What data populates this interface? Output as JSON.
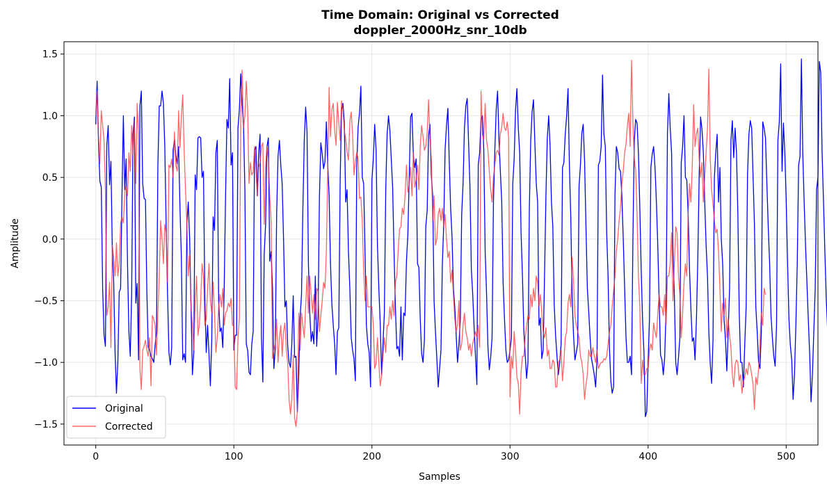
{
  "chart_data": {
    "type": "line",
    "title": "Time Domain: Original vs Corrected",
    "subtitle": "doppler_2000Hz_snr_10db",
    "xlabel": "Samples",
    "ylabel": "Amplitude",
    "xlim": [
      -23,
      523
    ],
    "ylim": [
      -1.67,
      1.6
    ],
    "x_ticks": [
      0,
      100,
      200,
      300,
      400,
      500
    ],
    "y_ticks": [
      1.5,
      1.0,
      0.5,
      0.0,
      -0.5,
      -1.0,
      -1.5
    ],
    "x_tick_labels": [
      "0",
      "100",
      "200",
      "300",
      "400",
      "500"
    ],
    "y_tick_labels": [
      "1.5",
      "1.0",
      "0.5",
      "0.0",
      "−0.5",
      "−1.0",
      "−1.5"
    ],
    "grid": true,
    "legend_position": "lower-left",
    "series": [
      {
        "name": "Original",
        "color": "#0000ff",
        "y": [
          0.93,
          1.28,
          0.78,
          0.47,
          0.42,
          -0.4,
          -0.78,
          -0.87,
          0.76,
          0.92,
          0.44,
          0.63,
          -0.1,
          -0.35,
          -0.92,
          -1.25,
          -1.0,
          -0.43,
          -0.4,
          0.35,
          1.0,
          0.4,
          0.65,
          -0.2,
          -0.75,
          -0.95,
          -0.45,
          0.85,
          0.99,
          -0.52,
          -0.36,
          -0.98,
          1.08,
          1.2,
          0.45,
          0.33,
          0.32,
          -0.42,
          -0.88,
          -0.9,
          -0.95,
          -0.97,
          -1.0,
          -0.86,
          -0.75,
          0.6,
          1.08,
          1.08,
          1.2,
          1.1,
          0.75,
          0.1,
          -0.45,
          -0.92,
          -1.02,
          -0.88,
          0.72,
          0.8,
          0.68,
          0.61,
          0.75,
          0.25,
          -0.15,
          -0.98,
          -0.93,
          -1.0,
          0.13,
          0.3,
          0.0,
          -0.55,
          -1.1,
          -0.92,
          0.52,
          0.4,
          0.82,
          0.83,
          0.82,
          0.5,
          0.55,
          -0.48,
          -0.92,
          -0.7,
          -0.93,
          -1.19,
          -0.82,
          0.18,
          0.07,
          0.7,
          0.8,
          -0.5,
          -0.75,
          -0.72,
          -0.88,
          -0.41,
          0.35,
          0.97,
          0.9,
          1.3,
          0.6,
          0.7,
          -0.9,
          -0.78,
          -0.78,
          0.9,
          1.05,
          1.34,
          1.1,
          0.93,
          0.4,
          -0.85,
          -0.9,
          -1.08,
          -1.1,
          -0.85,
          -0.75,
          0.72,
          0.75,
          0.35,
          0.7,
          0.85,
          -0.8,
          -1.16,
          -0.12,
          0.12,
          0.75,
          0.82,
          -0.18,
          -0.1,
          -0.4,
          -1.05,
          -0.89,
          0.2,
          0.67,
          0.8,
          0.6,
          0.45,
          0.0,
          -0.55,
          -0.5,
          -0.87,
          -1.0,
          -1.04,
          -0.85,
          -0.46,
          -0.96,
          -0.95,
          -1.4,
          -1.1,
          -0.63,
          -0.45,
          0.25,
          0.8,
          1.07,
          0.87,
          -0.2,
          -0.6,
          -0.83,
          -0.75,
          -0.85,
          -0.3,
          -0.87,
          -0.62,
          0.35,
          0.78,
          0.69,
          0.57,
          0.63,
          0.95,
          0.6,
          0.35,
          -0.2,
          -0.53,
          -0.7,
          -0.85,
          -1.1,
          -0.75,
          -0.72,
          0.48,
          1.05,
          1.1,
          0.95,
          0.3,
          0.4,
          -0.1,
          -0.4,
          -0.8,
          -0.9,
          -0.97,
          -1.15,
          0.6,
          0.91,
          1.02,
          1.24,
          0.5,
          0.45,
          -0.1,
          -0.7,
          -0.85,
          -0.92,
          -1.2,
          0.48,
          0.65,
          0.93,
          0.72,
          -0.05,
          -0.4,
          -0.68,
          -1.1,
          -0.85,
          -0.6,
          0.4,
          0.85,
          1.0,
          0.88,
          0.65,
          0.42,
          -0.1,
          -0.55,
          -0.89,
          -0.87,
          -0.95,
          -0.55,
          -0.98,
          -0.6,
          -0.62,
          -0.18,
          0.03,
          0.5,
          0.99,
          1.02,
          0.68,
          0.58,
          0.65,
          -0.2,
          -0.23,
          -0.65,
          -0.93,
          -1.0,
          -0.82,
          0.1,
          0.23,
          0.84,
          0.93,
          0.52,
          0.35,
          -0.5,
          -0.75,
          -0.97,
          -1.2,
          -1.05,
          -0.9,
          -0.2,
          0.12,
          0.73,
          0.92,
          1.06,
          0.63,
          0.25,
          0.02,
          -0.4,
          -0.55,
          -0.78,
          -1.0,
          -0.85,
          -0.65,
          0.2,
          0.45,
          0.9,
          1.08,
          1.14,
          0.78,
          0.42,
          -0.25,
          -0.45,
          -0.72,
          -0.95,
          -1.18,
          0.6,
          0.7,
          0.97,
          1.0,
          0.72,
          -0.1,
          -0.44,
          -0.87,
          -1.06,
          -0.96,
          -0.8,
          0.3,
          0.72,
          1.05,
          1.2,
          0.8,
          0.55,
          0.3,
          -0.35,
          -0.65,
          -0.9,
          -1.0,
          -0.98,
          -0.9,
          -0.8,
          0.45,
          0.65,
          1.05,
          1.22,
          0.9,
          0.7,
          0.05,
          -0.3,
          -0.74,
          -0.94,
          -1.13,
          -1.0,
          0.25,
          0.8,
          1.03,
          1.13,
          0.78,
          0.45,
          0.3,
          -0.7,
          -0.64,
          -0.97,
          -0.9,
          -0.3,
          0.35,
          0.82,
          1.0,
          0.76,
          0.3,
          0.1,
          -0.53,
          -0.78,
          -0.95,
          -1.1,
          -1.0,
          -0.85,
          0.58,
          0.62,
          0.85,
          1.0,
          1.22,
          0.6,
          0.18,
          -0.48,
          -0.78,
          -0.98,
          -0.92,
          -0.85,
          0.43,
          0.6,
          0.86,
          0.93,
          0.63,
          0.1,
          -0.4,
          -0.59,
          -0.8,
          -0.97,
          -1.03,
          -1.1,
          -1.2,
          -0.98,
          0.6,
          0.63,
          0.75,
          1.33,
          0.85,
          0.75,
          0.05,
          -0.3,
          -0.88,
          -1.15,
          -1.25,
          -1.2,
          0.35,
          0.75,
          0.7,
          0.57,
          0.55,
          0.35,
          0.0,
          -0.4,
          -0.8,
          -1.0,
          -1.0,
          -0.95,
          -1.1,
          0.0,
          0.8,
          0.97,
          0.94,
          0.7,
          0.25,
          -0.25,
          -0.66,
          -0.92,
          -1.44,
          -1.4,
          -1.0,
          -0.65,
          0.58,
          0.69,
          0.75,
          0.58,
          0.3,
          -0.05,
          -0.5,
          -0.94,
          -0.98,
          -1.1,
          -0.96,
          -0.58,
          0.85,
          1.18,
          0.9,
          0.7,
          -0.1,
          -0.45,
          -1.0,
          -1.1,
          -0.96,
          -0.8,
          0.62,
          0.75,
          1.0,
          0.5,
          0.48,
          0.2,
          -0.25,
          -0.57,
          -0.83,
          -0.8,
          -0.98,
          -0.65,
          -0.16,
          0.52,
          0.99,
          0.89,
          0.7,
          0.3,
          -0.05,
          -0.3,
          -0.76,
          -1.01,
          -1.17,
          -0.82,
          0.5,
          0.7,
          0.85,
          0.3,
          0.58,
          0.0,
          -0.2,
          -0.65,
          -0.81,
          -1.07,
          -0.75,
          -0.4,
          0.8,
          0.96,
          0.66,
          0.9,
          0.7,
          0.2,
          -0.6,
          -1.0,
          -1.0,
          -1.2,
          -0.85,
          -0.55,
          0.52,
          0.85,
          0.96,
          0.9,
          0.51,
          0.12,
          -0.55,
          -0.75,
          -1.0,
          -1.05,
          -0.75,
          0.95,
          0.9,
          0.82,
          0.45,
          0.1,
          -0.2,
          -0.62,
          -0.8,
          -0.95,
          -1.03,
          -0.7,
          0.8,
          0.95,
          1.42,
          0.55,
          0.94,
          0.7,
          0.31,
          -0.2,
          -0.65,
          -0.86,
          -0.98,
          -1.3,
          -1.1,
          -0.7,
          -0.2,
          0.6,
          0.67,
          1.46,
          0.7,
          0.3,
          -0.05,
          -0.35,
          -0.65,
          -0.93,
          -1.32,
          -1.1,
          -0.75,
          -0.4,
          0.4,
          0.5,
          1.44,
          1.35,
          0.7,
          0.31,
          -0.1,
          -0.48,
          -0.75,
          -0.9,
          -1.05,
          -0.88,
          -0.98,
          -0.46
        ]
      },
      {
        "name": "Corrected",
        "color": "#ff3333",
        "y": [
          1.0,
          1.2,
          0.83,
          0.61,
          1.04,
          0.92,
          0.8,
          0.4,
          -0.62,
          -0.55,
          -0.35,
          -0.88,
          -0.05,
          -0.15,
          -0.3,
          -0.03,
          -0.3,
          -0.2,
          0.13,
          0.18,
          0.13,
          0.38,
          0.43,
          0.35,
          0.7,
          0.55,
          0.92,
          0.68,
          0.96,
          0.45,
          1.1,
          0.86,
          -1.05,
          -1.22,
          -0.9,
          -0.87,
          -0.82,
          -0.9,
          -0.95,
          -0.8,
          -1.19,
          -0.62,
          -0.65,
          -0.7,
          -0.94,
          -0.6,
          -0.3,
          0.15,
          0.0,
          -0.2,
          0.12,
          0.05,
          -0.35,
          0.6,
          0.58,
          0.65,
          0.5,
          0.87,
          0.6,
          0.55,
          1.04,
          0.74,
          1.0,
          1.17,
          0.72,
          0.4,
          0.12,
          -0.3,
          -0.13,
          -0.55,
          -0.7,
          -0.9,
          -0.52,
          -0.3,
          -0.78,
          -0.7,
          -0.5,
          -0.2,
          -0.3,
          -0.7,
          -0.65,
          -0.4,
          -0.2,
          -0.5,
          -0.6,
          -0.35,
          -0.6,
          -0.92,
          -0.8,
          -0.55,
          -0.45,
          -0.55,
          -0.4,
          -0.7,
          -0.6,
          -0.58,
          -0.52,
          -0.55,
          -0.48,
          -0.7,
          -0.7,
          -1.2,
          -1.22,
          -0.8,
          -0.65,
          1.0,
          1.37,
          0.9,
          1.0,
          1.28,
          1.05,
          0.45,
          0.62,
          0.52,
          0.54,
          0.75,
          0.58,
          0.35,
          0.58,
          0.62,
          0.75,
          0.78,
          0.12,
          0.6,
          0.75,
          0.65,
          0.35,
          0.15,
          -0.97,
          -0.9,
          -0.85,
          -0.65,
          -1.0,
          -0.8,
          -0.7,
          -0.95,
          -0.75,
          -0.68,
          -0.9,
          -1.0,
          -1.3,
          -1.42,
          -1.3,
          -0.94,
          -1.45,
          -1.52,
          -1.4,
          -0.6,
          -0.9,
          -0.6,
          -0.7,
          -0.8,
          -0.55,
          -0.3,
          -0.6,
          -0.3,
          -0.45,
          -0.6,
          -0.45,
          -0.65,
          -0.4,
          -0.42,
          -0.75,
          -0.62,
          -0.5,
          -0.35,
          -0.4,
          -0.1,
          0.55,
          1.23,
          0.83,
          1.05,
          1.1,
          0.88,
          0.76,
          1.11,
          0.95,
          0.8,
          1.12,
          1.05,
          0.88,
          0.81,
          0.71,
          0.64,
          0.95,
          1.03,
          0.85,
          0.52,
          0.63,
          0.7,
          0.65,
          0.33,
          0.34,
          0.15,
          -0.25,
          -0.5,
          -0.3,
          -0.55,
          -0.55,
          -0.55,
          -0.55,
          -0.7,
          -1.05,
          -1.01,
          -0.8,
          -1.0,
          -1.19,
          -1.11,
          -0.95,
          -0.8,
          -0.92,
          -0.7,
          -0.7,
          -0.55,
          -0.65,
          -0.5,
          -0.62,
          -0.35,
          -0.3,
          -0.1,
          0.08,
          0.1,
          0.25,
          0.2,
          0.35,
          0.6,
          0.38,
          0.45,
          0.58,
          0.35,
          0.7,
          0.42,
          0.48,
          0.6,
          0.4,
          0.75,
          0.92,
          0.83,
          0.72,
          0.75,
          0.86,
          1.13,
          0.82,
          0.65,
          0.15,
          0.35,
          -0.05,
          0.0,
          0.2,
          0.25,
          0.15,
          0.25,
          0.1,
          0.2,
          0.0,
          -0.15,
          -0.1,
          -0.35,
          -0.25,
          -0.45,
          -0.65,
          -0.75,
          -0.7,
          -0.5,
          -0.9,
          -0.85,
          -0.7,
          -0.6,
          -0.75,
          -0.8,
          -0.9,
          -0.85,
          -0.95,
          -0.85,
          -0.8,
          -0.75,
          -0.8,
          -0.7,
          -0.88,
          1.2,
          0.85,
          0.8,
          1.1,
          0.8,
          0.72,
          0.55,
          0.4,
          0.3,
          0.5,
          0.6,
          0.7,
          0.72,
          0.68,
          0.85,
          0.91,
          1.02,
          0.9,
          0.88,
          0.95,
          0.82,
          -1.28,
          -0.95,
          -1.05,
          -0.75,
          -0.9,
          -1.12,
          -1.17,
          -1.42,
          -1.08,
          -0.95,
          -0.95,
          -0.8,
          -0.7,
          -0.62,
          -0.65,
          -0.45,
          -0.55,
          -0.4,
          -0.5,
          -0.3,
          -0.35,
          -0.55,
          -0.45,
          -0.6,
          -0.75,
          -0.8,
          -0.72,
          -0.95,
          -0.9,
          -1.05,
          -1.05,
          -0.98,
          -1.0,
          -1.2,
          -1.2,
          -1.0,
          -0.98,
          -0.9,
          -1.15,
          -1.0,
          -0.8,
          -0.75,
          -0.52,
          -0.45,
          -0.55,
          -0.15,
          -0.35,
          -0.62,
          -0.7,
          -0.75,
          -0.8,
          -0.95,
          -1.0,
          -1.1,
          -1.3,
          -1.18,
          -1.1,
          -0.9,
          -0.95,
          -0.95,
          -0.88,
          -0.95,
          -1.0,
          -0.9,
          -1.05,
          -1.02,
          -1.0,
          -1.0,
          -0.97,
          -0.98,
          -0.95,
          -0.85,
          -0.75,
          -0.7,
          -0.55,
          -0.42,
          -0.3,
          -0.1,
          0.0,
          0.15,
          0.25,
          0.45,
          0.55,
          0.7,
          0.77,
          0.92,
          1.02,
          0.75,
          1.45,
          0.95,
          0.65,
          0.55,
          0.2,
          -0.3,
          -0.55,
          -1.17,
          -0.98,
          -1.1,
          -1.1,
          -1.05,
          -1.05,
          -0.9,
          -0.85,
          -0.9,
          -0.68,
          -0.75,
          -0.8,
          -0.6,
          -0.45,
          -0.55,
          -0.55,
          -0.62,
          -0.45,
          -0.7,
          -0.3,
          -0.3,
          -0.2,
          0.05,
          -0.5,
          -0.2,
          0.1,
          0.05,
          -0.3,
          -0.45,
          -0.8,
          -0.6,
          -0.35,
          -0.2,
          -0.3,
          0.2,
          0.45,
          0.3,
          0.6,
          1.09,
          0.75,
          0.85,
          0.9,
          0.65,
          0.5,
          0.62,
          0.3,
          0.5,
          0.7,
          0.9,
          1.38,
          0.65,
          0.4,
          0.28,
          0.15,
          0.05,
          0.08,
          -0.1,
          -0.4,
          -0.75,
          -0.52,
          -0.62,
          -0.48,
          -0.8,
          -0.65,
          -0.78,
          -0.88,
          -1.1,
          -1.2,
          -1.02,
          -0.98,
          -1.0,
          -1.15,
          -1.1,
          -1.25,
          -1.15,
          -1.12,
          -1.05,
          -1.1,
          -1.0,
          -1.03,
          -1.1,
          -1.18,
          -1.38,
          -1.12,
          -1.18,
          -1.05,
          -0.85,
          -0.6,
          -0.7,
          -0.4,
          -0.45
        ]
      }
    ]
  }
}
